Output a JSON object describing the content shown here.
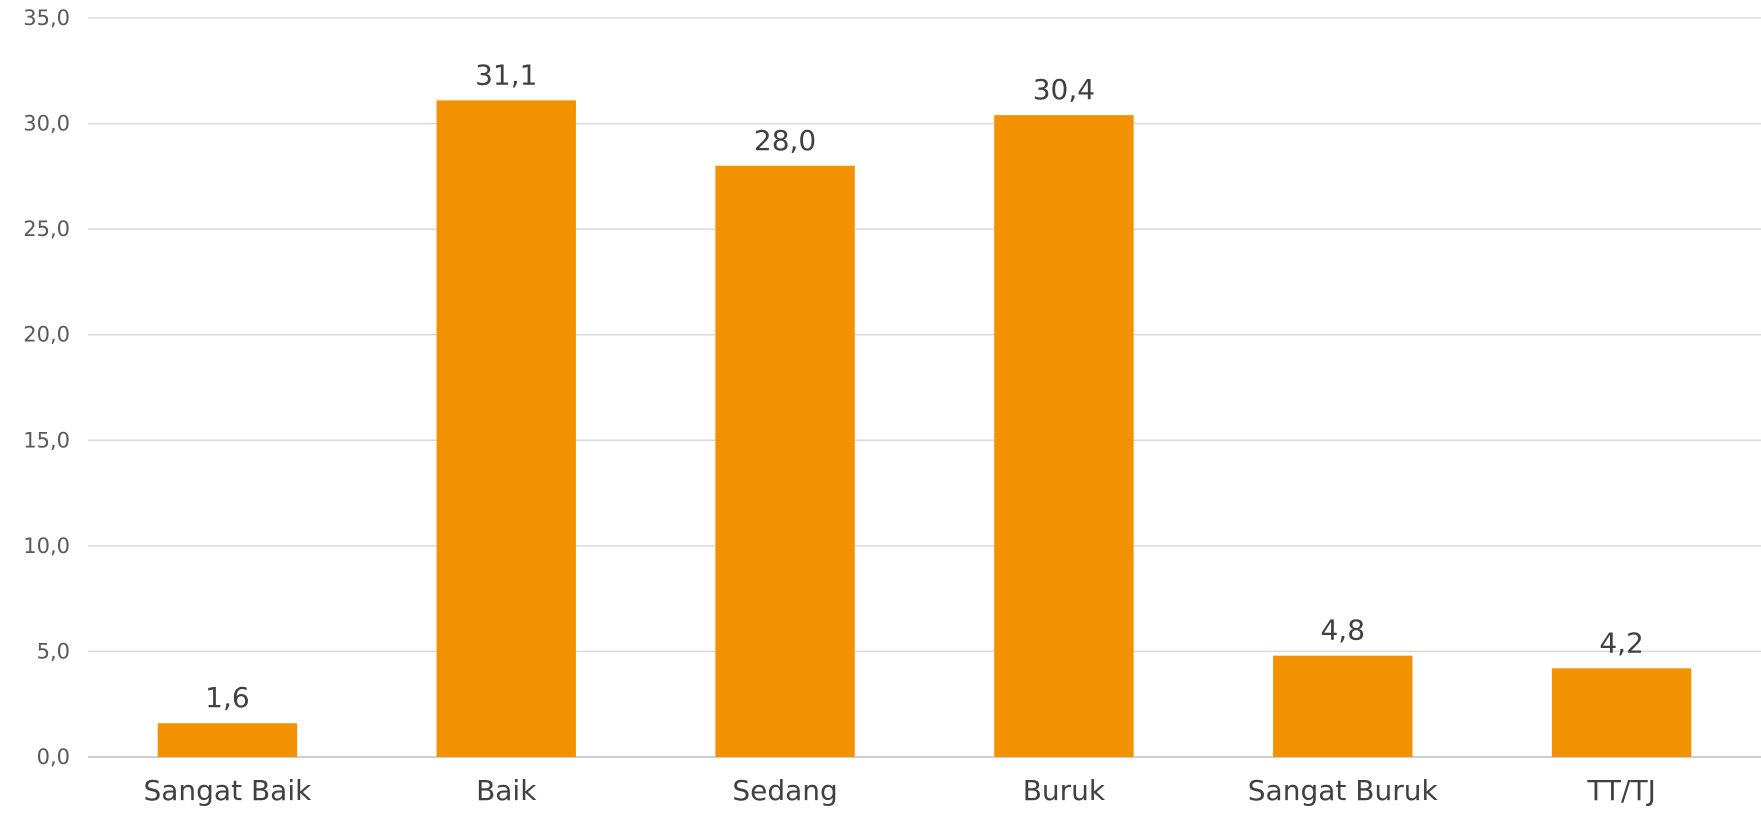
{
  "chart_data": {
    "type": "bar",
    "categories": [
      "Sangat Baik",
      "Baik",
      "Sedang",
      "Buruk",
      "Sangat Buruk",
      "TT/TJ"
    ],
    "values": [
      1.6,
      31.1,
      28.0,
      30.4,
      4.8,
      4.2
    ],
    "data_labels": [
      "1,6",
      "31,1",
      "28,0",
      "30,4",
      "4,8",
      "4,2"
    ],
    "ylim": [
      0,
      35
    ],
    "yticks": [
      0,
      5,
      10,
      15,
      20,
      25,
      30,
      35
    ],
    "ytick_labels": [
      "0,0",
      "5,0",
      "10,0",
      "15,0",
      "20,0",
      "25,0",
      "30,0",
      "35,0"
    ],
    "grid": true,
    "bar_color": "#F39200",
    "title": "",
    "xlabel": "",
    "ylabel": ""
  }
}
